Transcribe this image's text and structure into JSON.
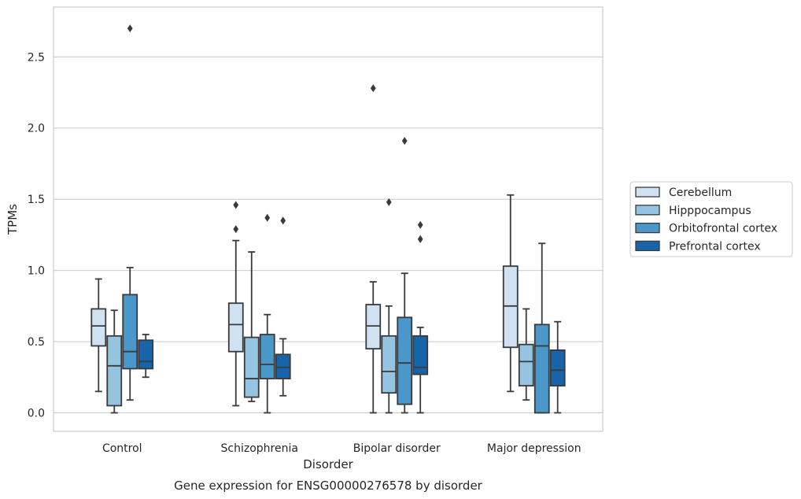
{
  "chart_data": {
    "type": "box",
    "caption": "Gene expression for ENSG00000276578 by disorder",
    "xlabel": "Disorder",
    "ylabel": "TPMs",
    "ylim": [
      -0.13,
      2.85
    ],
    "yticks": [
      "0.0",
      "0.5",
      "1.0",
      "1.5",
      "2.0",
      "2.5"
    ],
    "categories": [
      "Control",
      "Schizophrenia",
      "Bipolar disorder",
      "Major depression"
    ],
    "grid": true,
    "legend_position": "right",
    "series": [
      {
        "name": "Cerebellum",
        "color": "#d0e1f2",
        "boxes": [
          {
            "whislo": 0.15,
            "q1": 0.47,
            "med": 0.61,
            "q3": 0.73,
            "whishi": 0.94,
            "fliers": []
          },
          {
            "whislo": 0.05,
            "q1": 0.43,
            "med": 0.62,
            "q3": 0.77,
            "whishi": 1.21,
            "fliers": [
              1.29,
              1.46
            ]
          },
          {
            "whislo": 0.0,
            "q1": 0.45,
            "med": 0.61,
            "q3": 0.76,
            "whishi": 0.92,
            "fliers": [
              2.28
            ]
          },
          {
            "whislo": 0.15,
            "q1": 0.46,
            "med": 0.75,
            "q3": 1.03,
            "whishi": 1.53,
            "fliers": []
          }
        ]
      },
      {
        "name": "Hipppocampus",
        "color": "#94c4df",
        "boxes": [
          {
            "whislo": 0.0,
            "q1": 0.05,
            "med": 0.33,
            "q3": 0.54,
            "whishi": 0.72,
            "fliers": []
          },
          {
            "whislo": 0.08,
            "q1": 0.11,
            "med": 0.24,
            "q3": 0.53,
            "whishi": 1.13,
            "fliers": []
          },
          {
            "whislo": 0.0,
            "q1": 0.14,
            "med": 0.29,
            "q3": 0.54,
            "whishi": 0.75,
            "fliers": [
              1.48
            ]
          },
          {
            "whislo": 0.09,
            "q1": 0.19,
            "med": 0.36,
            "q3": 0.48,
            "whishi": 0.73,
            "fliers": []
          }
        ]
      },
      {
        "name": "Orbitofrontal cortex",
        "color": "#4a98c9",
        "boxes": [
          {
            "whislo": 0.09,
            "q1": 0.31,
            "med": 0.43,
            "q3": 0.83,
            "whishi": 1.02,
            "fliers": [
              2.7
            ]
          },
          {
            "whislo": 0.0,
            "q1": 0.24,
            "med": 0.34,
            "q3": 0.55,
            "whishi": 0.69,
            "fliers": [
              1.37
            ]
          },
          {
            "whislo": 0.0,
            "q1": 0.06,
            "med": 0.35,
            "q3": 0.67,
            "whishi": 0.98,
            "fliers": [
              1.91
            ]
          },
          {
            "whislo": 0.0,
            "q1": 0.0,
            "med": 0.47,
            "q3": 0.62,
            "whishi": 1.19,
            "fliers": []
          }
        ]
      },
      {
        "name": "Prefrontal cortex",
        "color": "#1764ab",
        "boxes": [
          {
            "whislo": 0.25,
            "q1": 0.31,
            "med": 0.36,
            "q3": 0.51,
            "whishi": 0.55,
            "fliers": []
          },
          {
            "whislo": 0.12,
            "q1": 0.24,
            "med": 0.32,
            "q3": 0.41,
            "whishi": 0.52,
            "fliers": [
              1.35
            ]
          },
          {
            "whislo": 0.0,
            "q1": 0.27,
            "med": 0.32,
            "q3": 0.54,
            "whishi": 0.6,
            "fliers": [
              1.22,
              1.32
            ]
          },
          {
            "whislo": 0.0,
            "q1": 0.19,
            "med": 0.3,
            "q3": 0.44,
            "whishi": 0.64,
            "fliers": []
          }
        ]
      }
    ]
  }
}
